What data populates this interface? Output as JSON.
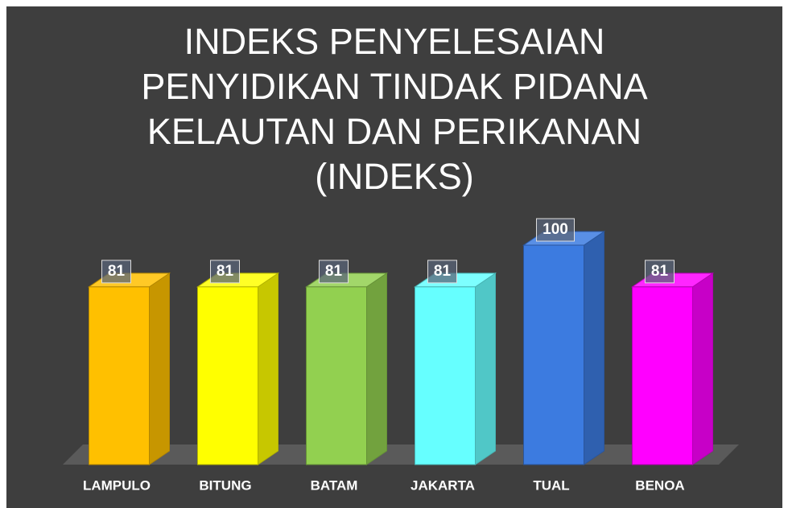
{
  "chart_data": {
    "type": "bar3d",
    "title": "INDEKS PENYELESAIAN PENYIDIKAN TINDAK PIDANA KELAUTAN DAN PERIKANAN (INDEKS)",
    "categories": [
      "LAMPULO",
      "BITUNG",
      "BATAM",
      "JAKARTA",
      "TUAL",
      "BENOA"
    ],
    "values": [
      81,
      81,
      81,
      81,
      100,
      81
    ],
    "colors": [
      "#ffc000",
      "#ffff00",
      "#92d050",
      "#66ffff",
      "#3c7be0",
      "#ff00ff"
    ],
    "ylim": [
      0,
      100
    ]
  }
}
